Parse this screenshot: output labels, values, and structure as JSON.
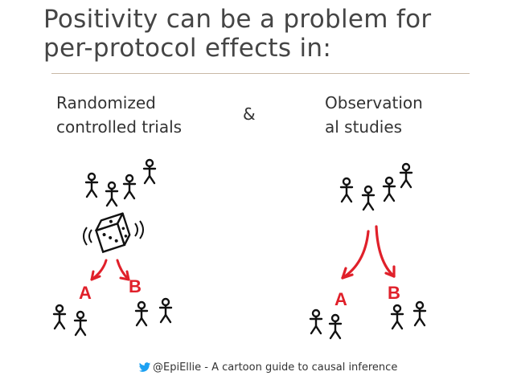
{
  "slide": {
    "title_line1": "Positivity can be a problem for",
    "title_line2": "per-protocol effects in:",
    "left_label": "Randomized\ncontrolled trials",
    "right_label": "Observation\nal studies",
    "ampersand": "&",
    "left_group_a": "A",
    "left_group_b": "B",
    "right_group_a": "A",
    "right_group_b": "B",
    "footer": "@EpiEllie - A cartoon guide to causal inference",
    "accent_color": "#e0202a",
    "footer_icon": "twitter-bird-icon"
  }
}
